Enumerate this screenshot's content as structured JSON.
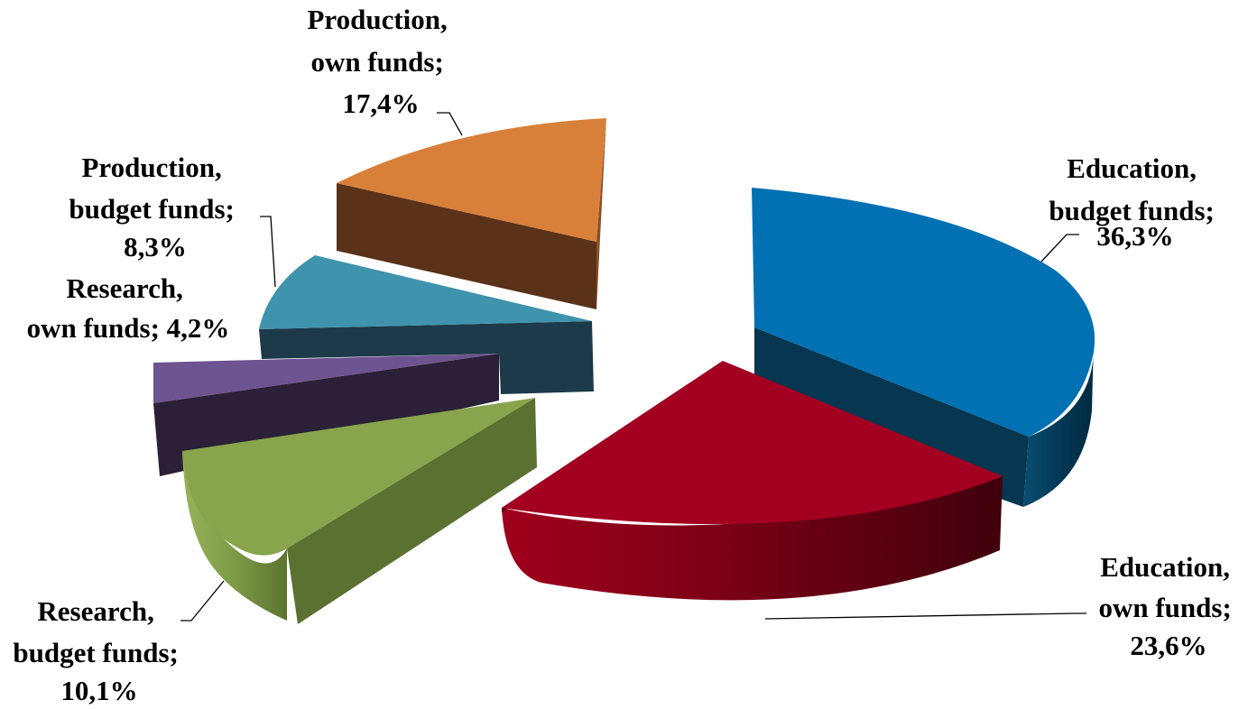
{
  "chart_data": {
    "type": "pie",
    "style": "3d-exploded",
    "slices": [
      {
        "key": "edu_budget",
        "category": "Education",
        "funds": "budget funds",
        "value": 36.3,
        "value_label": "36,3%",
        "color": "#0271B3"
      },
      {
        "key": "edu_own",
        "category": "Education",
        "funds": "own funds",
        "value": 23.6,
        "value_label": "23,6%",
        "color": "#A30021"
      },
      {
        "key": "res_budget",
        "category": "Research",
        "funds": "budget funds",
        "value": 10.1,
        "value_label": "10,1%",
        "color": "#88A44C"
      },
      {
        "key": "res_own",
        "category": "Research",
        "funds": "own funds",
        "value": 4.2,
        "value_label": "4,2%",
        "color": "#6D5390"
      },
      {
        "key": "prod_budget",
        "category": "Production",
        "funds": "budget funds",
        "value": 8.3,
        "value_label": "8,3%",
        "color": "#3F93AD"
      },
      {
        "key": "prod_own",
        "category": "Production",
        "funds": "own funds",
        "value": 17.4,
        "value_label": "17,4%",
        "color": "#D8803A"
      }
    ],
    "legend": "none",
    "data_labels": "category; value"
  }
}
